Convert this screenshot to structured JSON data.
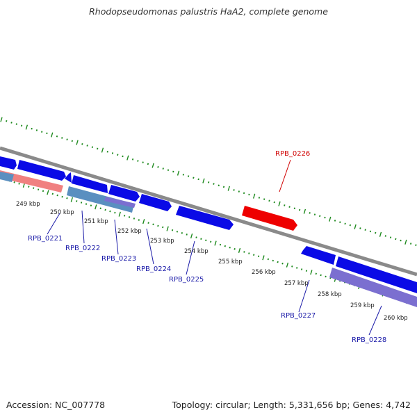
{
  "title": "Rhodopseudomonas palustris HaA2, complete genome",
  "accession": "Accession: NC_007778",
  "stats": "Topology: circular; Length: 5,331,656 bp; Genes: 4,742",
  "colors": {
    "backbone": "#8a8a8a",
    "gene_forward": "#0a0ae6",
    "gene_highlight": "#ee0000",
    "label_default": "#1a1aa8",
    "label_highlight": "#d00000",
    "tick": "#1e8a1e",
    "strip_pink": "#f08080",
    "strip_blue": "#5a8fc0",
    "strip_purple": "#7b6fd0"
  },
  "ticks": [
    "249 kbp",
    "250 kbp",
    "251 kbp",
    "252 kbp",
    "253 kbp",
    "254 kbp",
    "255 kbp",
    "256 kbp",
    "257 kbp",
    "258 kbp",
    "259 kbp",
    "260 kbp"
  ],
  "genes": [
    {
      "label": "RPB_0221",
      "highlight": false
    },
    {
      "label": "RPB_0222",
      "highlight": false
    },
    {
      "label": "RPB_0223",
      "highlight": false
    },
    {
      "label": "RPB_0224",
      "highlight": false
    },
    {
      "label": "RPB_0225",
      "highlight": false
    },
    {
      "label": "RPB_0226",
      "highlight": true
    },
    {
      "label": "RPB_0227",
      "highlight": false
    },
    {
      "label": "RPB_0228",
      "highlight": false
    }
  ]
}
